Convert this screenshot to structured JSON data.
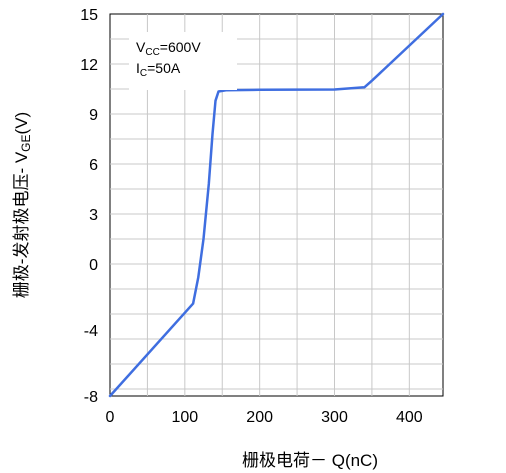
{
  "chart_data": {
    "type": "line",
    "xlabel": "栅极电荷－ Q(nC)",
    "ylabel_prefix": "栅极-发射极电压- V",
    "ylabel_sub": "GE",
    "ylabel_suffix": "(V)",
    "x_ticks": [
      0,
      100,
      200,
      300,
      400
    ],
    "y_ticks": [
      "15",
      "12",
      "9",
      "6",
      "3",
      "0",
      "-4",
      "-8"
    ],
    "xlim": [
      0,
      445
    ],
    "grid": true,
    "line_color": "#3f6ee0",
    "annotations": {
      "vcc": {
        "prefix": "V",
        "sub": "CC",
        "suffix": "=600V"
      },
      "ic": {
        "prefix": "I",
        "sub": "C",
        "suffix": "=50A"
      }
    },
    "series": [
      {
        "points": [
          {
            "x": 0,
            "y": -8
          },
          {
            "x": 111,
            "y": -2.4
          },
          {
            "x": 118,
            "y": -0.8
          },
          {
            "x": 125,
            "y": 1.5
          },
          {
            "x": 132,
            "y": 4.8
          },
          {
            "x": 137,
            "y": 7.8
          },
          {
            "x": 141,
            "y": 9.8
          },
          {
            "x": 145,
            "y": 10.35
          },
          {
            "x": 155,
            "y": 10.42
          },
          {
            "x": 200,
            "y": 10.45
          },
          {
            "x": 300,
            "y": 10.47
          },
          {
            "x": 340,
            "y": 10.6
          },
          {
            "x": 350,
            "y": 11.0
          },
          {
            "x": 445,
            "y": 15.0
          }
        ]
      }
    ]
  }
}
